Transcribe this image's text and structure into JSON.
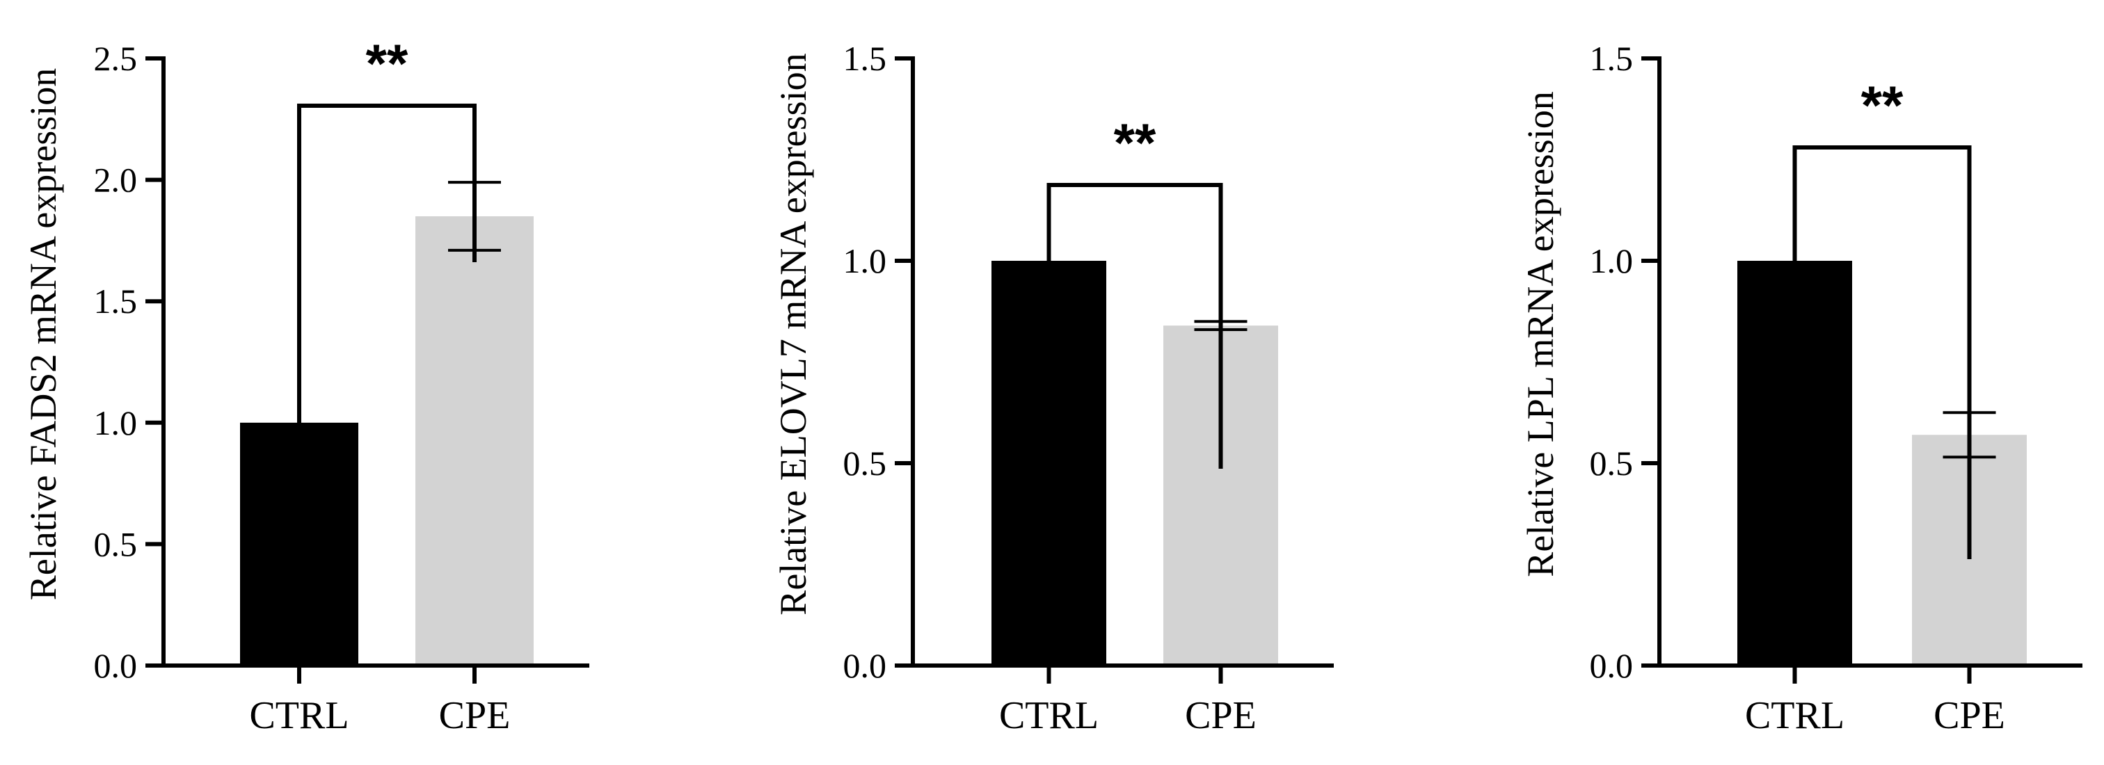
{
  "chart_data": [
    {
      "type": "bar",
      "ylabel": "Relative  FADS2 mRNA expression",
      "categories": [
        "CTRL",
        "CPE"
      ],
      "values": [
        1.0,
        1.85
      ],
      "errors": [
        0,
        0.14
      ],
      "bar_colors": [
        "#000000",
        "#d3d3d3"
      ],
      "ylim": [
        0,
        2.5
      ],
      "yticks": [
        "0.0",
        "0.5",
        "1.0",
        "1.5",
        "2.0",
        "2.5"
      ],
      "significance": {
        "between": [
          "CTRL",
          "CPE"
        ],
        "label": "**"
      },
      "grid": false
    },
    {
      "type": "bar",
      "ylabel": "Relative  ELOVL7 mRNA expression",
      "categories": [
        "CTRL",
        "CPE"
      ],
      "values": [
        1.0,
        0.84
      ],
      "errors": [
        0,
        0.01
      ],
      "bar_colors": [
        "#000000",
        "#d3d3d3"
      ],
      "ylim": [
        0,
        1.5
      ],
      "yticks": [
        "0.0",
        "0.5",
        "1.0",
        "1.5"
      ],
      "significance": {
        "between": [
          "CTRL",
          "CPE"
        ],
        "label": "**"
      },
      "grid": false
    },
    {
      "type": "bar",
      "ylabel": "Relative  LPL mRNA expression",
      "categories": [
        "CTRL",
        "CPE"
      ],
      "values": [
        1.0,
        0.57
      ],
      "errors": [
        0,
        0.055
      ],
      "bar_colors": [
        "#000000",
        "#d3d3d3"
      ],
      "ylim": [
        0,
        1.5
      ],
      "yticks": [
        "0.0",
        "0.5",
        "1.0",
        "1.5"
      ],
      "significance": {
        "between": [
          "CTRL",
          "CPE"
        ],
        "label": "**"
      },
      "grid": false
    }
  ]
}
